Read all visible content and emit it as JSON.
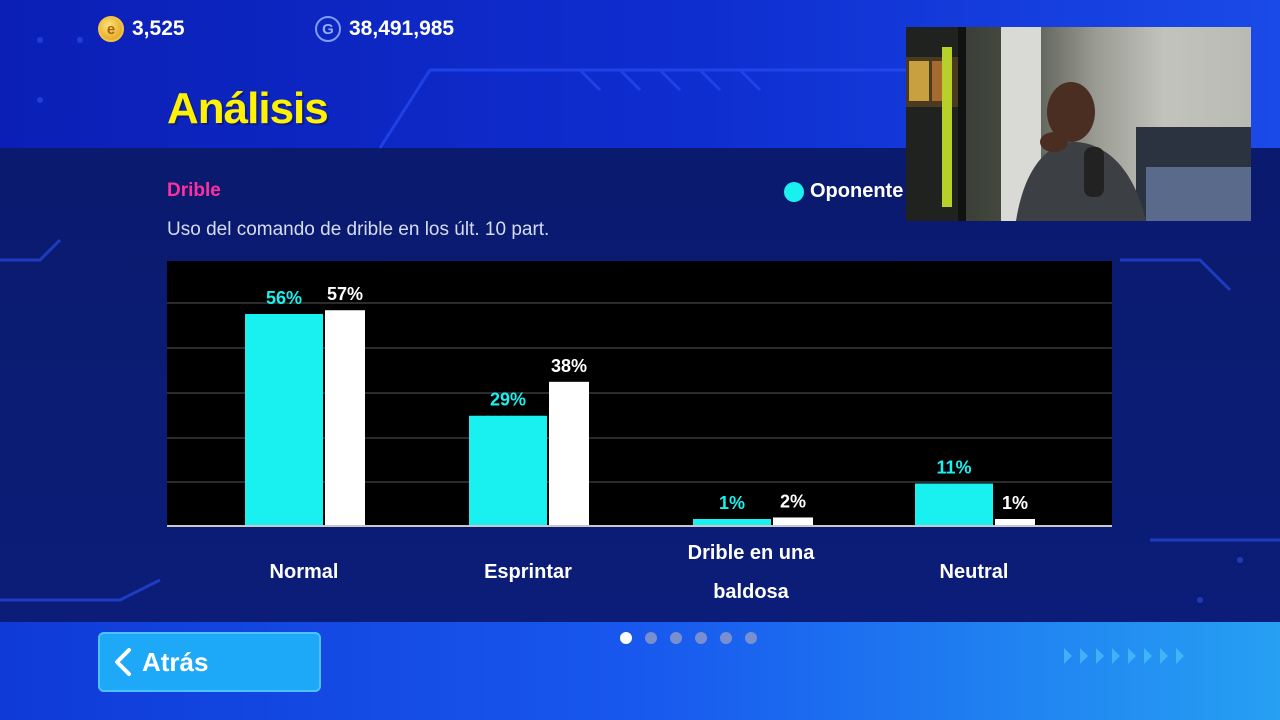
{
  "header": {
    "coins_value": "3,525",
    "gp_value": "38,491,985",
    "coins_icon": "ecoin-icon",
    "gp_icon": "gp-icon"
  },
  "page": {
    "title": "Análisis",
    "section": "Drible",
    "subtitle": "Uso del comando de drible en los últ. 10 part.",
    "legend_label": "Oponente"
  },
  "chart_data": {
    "type": "bar",
    "categories": [
      "Normal",
      "Esprintar",
      "Drible en una baldosa",
      "Neutral"
    ],
    "category_lines": [
      [
        "Normal"
      ],
      [
        "Esprintar"
      ],
      [
        "Drible en una",
        "baldosa"
      ],
      [
        "Neutral"
      ]
    ],
    "series": [
      {
        "name": "Oponente",
        "color": "#19f0f0",
        "values": [
          56,
          29,
          1,
          11
        ],
        "labels": [
          "56%",
          "29%",
          "1%",
          "11%"
        ]
      },
      {
        "color": "#ffffff",
        "values": [
          57,
          38,
          2,
          1
        ],
        "labels": [
          "57%",
          "38%",
          "2%",
          "1%"
        ]
      }
    ],
    "ylim": [
      0,
      60
    ],
    "grid": true,
    "legend": "top-right"
  },
  "pager": {
    "pages": 6,
    "active": 0
  },
  "footer": {
    "back_label": "Atrás"
  },
  "colors": {
    "title": "#fff200",
    "section": "#ff2fa0",
    "opponent": "#19f0f0",
    "player": "#ffffff"
  }
}
